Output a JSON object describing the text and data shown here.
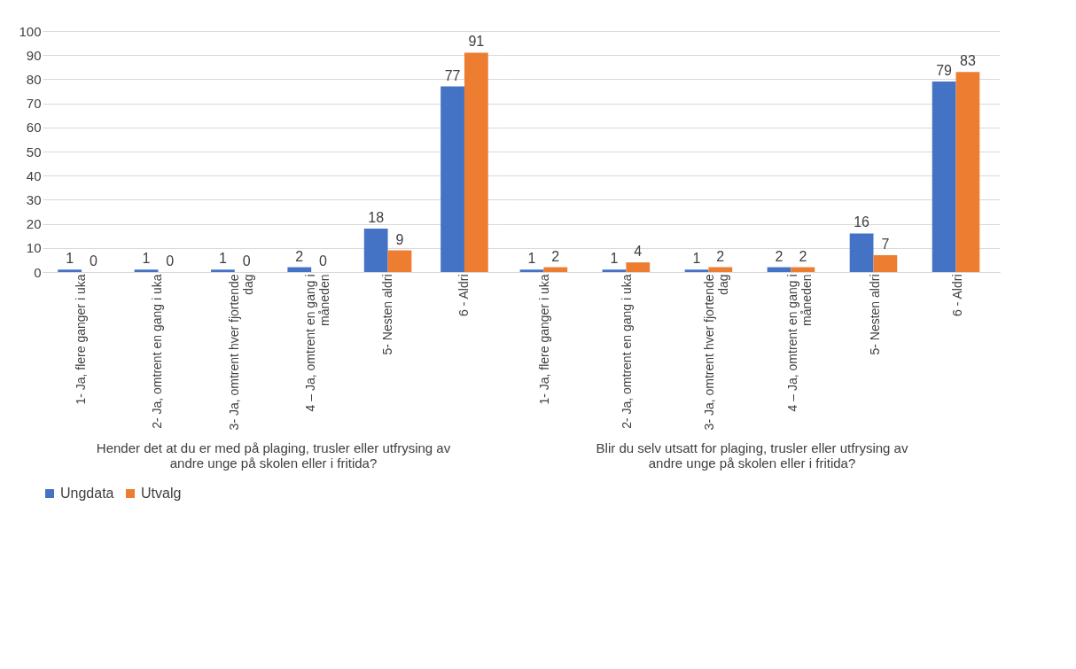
{
  "chart_data": [
    {
      "type": "bar",
      "xlabel": "Hender det at du er med på plaging, trusler eller utfrysing av andre unge på skolen eller i fritida?",
      "categories": [
        "1- Ja, flere ganger i uka",
        "2- Ja, omtrent en gang i uka",
        "3- Ja, omtrent hver fjortende dag",
        "4 – Ja, omtrent en gang i måneden",
        "5- Nesten aldri",
        "6 - Aldri"
      ],
      "series": [
        {
          "name": "Ungdata",
          "color": "#4472c4",
          "values": [
            1,
            1,
            1,
            2,
            18,
            77
          ]
        },
        {
          "name": "Utvalg",
          "color": "#ed7d31",
          "values": [
            0,
            0,
            0,
            0,
            9,
            91
          ]
        }
      ],
      "ylim": [
        0,
        100
      ],
      "yticks": [
        0,
        10,
        20,
        30,
        40,
        50,
        60,
        70,
        80,
        90,
        100
      ],
      "grid": "y",
      "data_labels": true,
      "legend": "bottom"
    },
    {
      "type": "bar",
      "xlabel": "Blir du selv utsatt for plaging, trusler eller utfrysing av andre unge på skolen eller i fritida?",
      "categories": [
        "1- Ja, flere ganger i uka",
        "2- Ja, omtrent en gang i uka",
        "3- Ja, omtrent hver fjortende dag",
        "4 – Ja, omtrent en gang i måneden",
        "5- Nesten aldri",
        "6 - Aldri"
      ],
      "series": [
        {
          "name": "Ungdata",
          "color": "#4472c4",
          "values": [
            1,
            1,
            1,
            2,
            16,
            79
          ]
        },
        {
          "name": "Utvalg",
          "color": "#ed7d31",
          "values": [
            2,
            4,
            2,
            2,
            7,
            83
          ]
        }
      ],
      "ylim": [
        0,
        100
      ],
      "yticks": [
        0,
        10,
        20,
        30,
        40,
        50,
        60,
        70,
        80,
        90,
        100
      ],
      "grid": "y",
      "data_labels": true,
      "legend": "bottom",
      "tick_labels": "x"
    }
  ]
}
